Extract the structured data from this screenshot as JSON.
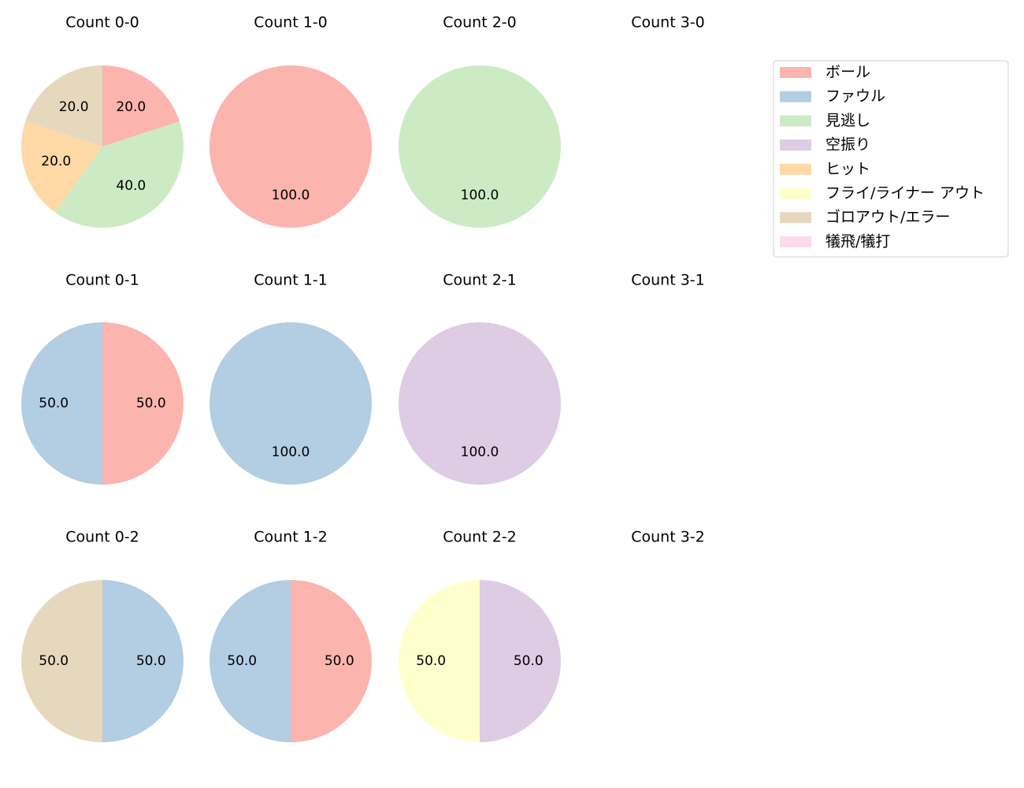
{
  "legend": {
    "items": [
      {
        "label": "ボール",
        "color": "#fbb4ae"
      },
      {
        "label": "ファウル",
        "color": "#b3cde3"
      },
      {
        "label": "見逃し",
        "color": "#ccebc5"
      },
      {
        "label": "空振り",
        "color": "#decbe4"
      },
      {
        "label": "ヒット",
        "color": "#fed9a6"
      },
      {
        "label": "フライ/ライナー アウト",
        "color": "#ffffcc"
      },
      {
        "label": "ゴロアウト/エラー",
        "color": "#e5d8bd"
      },
      {
        "label": "犠飛/犠打",
        "color": "#fddaec"
      }
    ]
  },
  "chart_data": [
    {
      "type": "pie",
      "title": "Count 0-0",
      "labels": [
        "ボール",
        "見逃し",
        "ヒット",
        "ゴロアウト/エラー"
      ],
      "values": [
        20.0,
        40.0,
        20.0,
        20.0
      ]
    },
    {
      "type": "pie",
      "title": "Count 1-0",
      "labels": [
        "ボール"
      ],
      "values": [
        100.0
      ]
    },
    {
      "type": "pie",
      "title": "Count 2-0",
      "labels": [
        "見逃し"
      ],
      "values": [
        100.0
      ]
    },
    {
      "type": "pie",
      "title": "Count 3-0",
      "labels": [],
      "values": []
    },
    {
      "type": "pie",
      "title": "Count 0-1",
      "labels": [
        "ボール",
        "ファウル"
      ],
      "values": [
        50.0,
        50.0
      ]
    },
    {
      "type": "pie",
      "title": "Count 1-1",
      "labels": [
        "ファウル"
      ],
      "values": [
        100.0
      ]
    },
    {
      "type": "pie",
      "title": "Count 2-1",
      "labels": [
        "空振り"
      ],
      "values": [
        100.0
      ]
    },
    {
      "type": "pie",
      "title": "Count 3-1",
      "labels": [],
      "values": []
    },
    {
      "type": "pie",
      "title": "Count 0-2",
      "labels": [
        "ファウル",
        "ゴロアウト/エラー"
      ],
      "values": [
        50.0,
        50.0
      ]
    },
    {
      "type": "pie",
      "title": "Count 1-2",
      "labels": [
        "ボール",
        "ファウル"
      ],
      "values": [
        50.0,
        50.0
      ]
    },
    {
      "type": "pie",
      "title": "Count 2-2",
      "labels": [
        "空振り",
        "フライ/ライナー アウト"
      ],
      "values": [
        50.0,
        50.0
      ]
    },
    {
      "type": "pie",
      "title": "Count 3-2",
      "labels": [],
      "values": []
    }
  ]
}
